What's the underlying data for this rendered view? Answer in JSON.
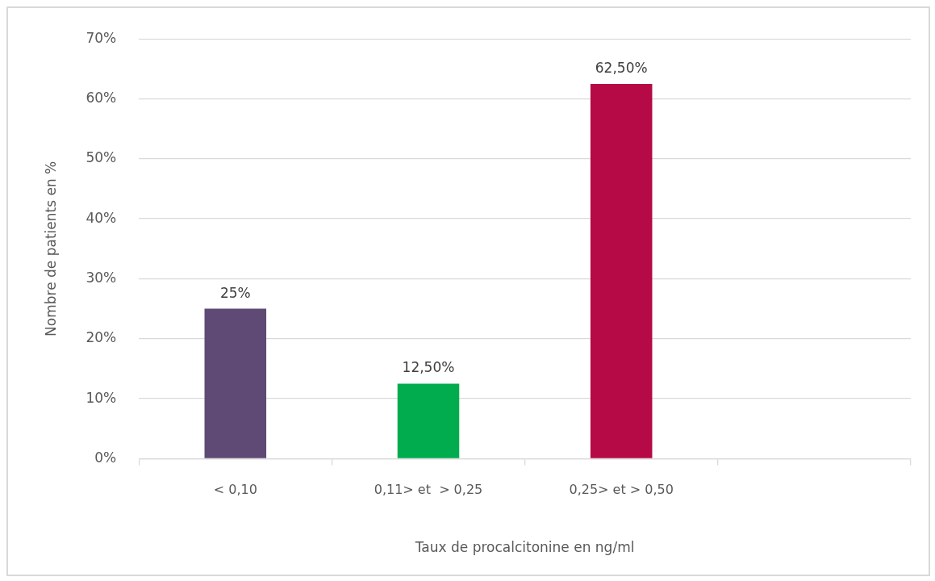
{
  "chart_data": {
    "type": "bar",
    "xlabel": "Taux de procalcitonine en ng/ml",
    "ylabel": "Nombre de patients en %",
    "categories": [
      "< 0,10",
      "0,11> et  > 0,25",
      "0,25> et > 0,50",
      null
    ],
    "values": [
      25,
      12.5,
      62.5,
      null
    ],
    "colors": [
      "#5f4a75",
      "#00ac4e",
      "#b50a45",
      "#888888"
    ],
    "value_labels": [
      "25%",
      "12,50%",
      "62,50%",
      null
    ],
    "ylim": [
      0,
      70
    ],
    "yticks": [
      {
        "value": 0,
        "label": "0%"
      },
      {
        "value": 10,
        "label": "10%"
      },
      {
        "value": 20,
        "label": "20%"
      },
      {
        "value": 30,
        "label": "30%"
      },
      {
        "value": 40,
        "label": "40%"
      },
      {
        "value": 50,
        "label": "50%"
      },
      {
        "value": 60,
        "label": "60%"
      },
      {
        "value": 70,
        "label": "70%"
      }
    ],
    "grid": "y",
    "legend": false
  }
}
